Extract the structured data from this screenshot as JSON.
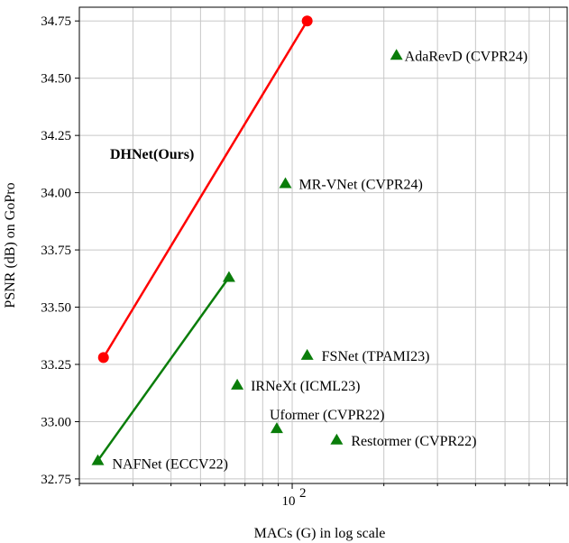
{
  "chart_data": {
    "type": "scatter",
    "xlabel": "MACs (G) in log scale",
    "ylabel": "PSNR (dB) on GoPro",
    "x_scale": "log",
    "xlim": [
      20,
      800
    ],
    "ylim": [
      32.73,
      34.81
    ],
    "grid": true,
    "x_tick_labels": [
      {
        "value": 100,
        "base": "10",
        "exp": "2"
      }
    ],
    "y_ticks": [
      32.75,
      33.0,
      33.25,
      33.5,
      33.75,
      34.0,
      34.25,
      34.5,
      34.75
    ],
    "y_tick_labels": [
      "32.75",
      "33.00",
      "33.25",
      "33.50",
      "33.75",
      "34.00",
      "34.25",
      "34.50",
      "34.75"
    ],
    "series": [
      {
        "name": "DHNet(Ours)",
        "marker": "circle",
        "color": "#ff0000",
        "points": [
          {
            "x": 24,
            "y": 33.28
          },
          {
            "x": 112,
            "y": 34.75
          }
        ]
      },
      {
        "marker": "triangle",
        "color": "#0a7d0a",
        "points": [
          {
            "x": 23,
            "y": 32.83
          },
          {
            "x": 62,
            "y": 33.63
          }
        ]
      }
    ],
    "methods": [
      {
        "label": "AdaRevD (CVPR24)",
        "x": 220,
        "y": 34.6
      },
      {
        "label": "MR-VNet (CVPR24)",
        "x": 95,
        "y": 34.04
      },
      {
        "label": "FSNet (TPAMI23)",
        "x": 112,
        "y": 33.29
      },
      {
        "label": "IRNeXt (ICML23)",
        "x": 66,
        "y": 33.16
      },
      {
        "label": "Uformer (CVPR22)",
        "x": 89,
        "y": 32.97
      },
      {
        "label": "Restormer (CVPR22)",
        "x": 140,
        "y": 32.92
      },
      {
        "label": "NAFNet (ECCV22)",
        "x": 23,
        "y": 32.83
      }
    ]
  }
}
